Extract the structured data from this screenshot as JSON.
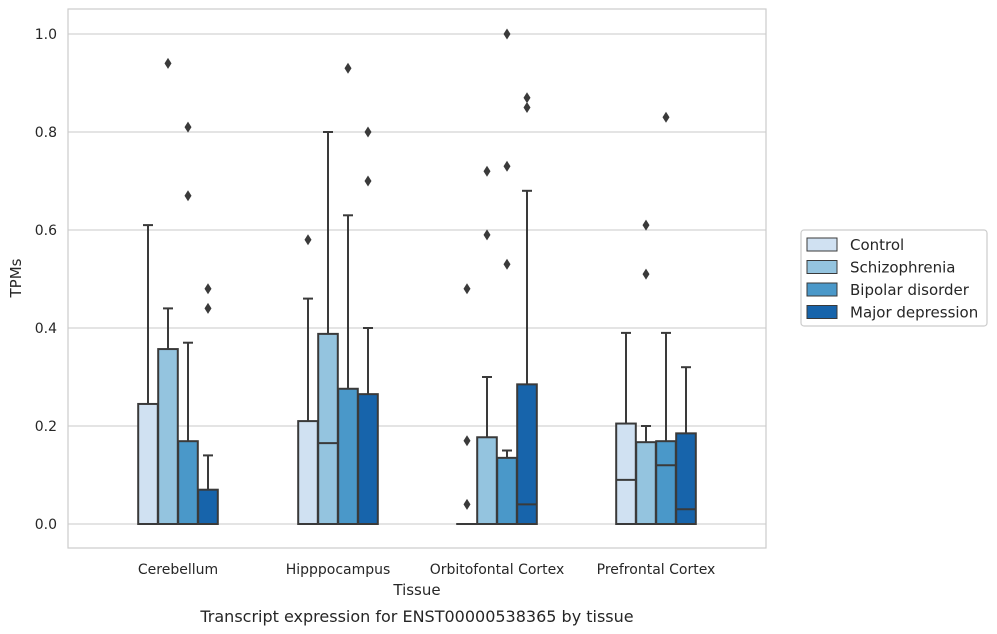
{
  "chart_data": {
    "type": "box",
    "title": "",
    "caption": "Transcript expression for ENST00000538365 by tissue",
    "xlabel": "Tissue",
    "ylabel": "TPMs",
    "ylim": [
      -0.05,
      1.05
    ],
    "yticks": [
      "0.0",
      "0.2",
      "0.4",
      "0.6",
      "0.8",
      "1.0"
    ],
    "grid": true,
    "legend_position": "right",
    "categories": [
      "Cerebellum",
      "Hipppocampus",
      "Orbitofontal Cortex",
      "Prefrontal Cortex"
    ],
    "series": [
      {
        "name": "Control",
        "color": "#d0e1f2",
        "boxes": [
          {
            "min": 0.0,
            "q1": 0.0,
            "median": 0.0,
            "q3": 0.245,
            "max": 0.61,
            "outliers": []
          },
          {
            "min": 0.0,
            "q1": 0.0,
            "median": 0.0,
            "q3": 0.21,
            "max": 0.46,
            "outliers": [
              0.58
            ]
          },
          {
            "min": 0.0,
            "q1": 0.0,
            "median": 0.0,
            "q3": 0.0,
            "max": 0.0,
            "outliers": [
              0.04,
              0.17,
              0.48
            ]
          },
          {
            "min": 0.0,
            "q1": 0.0,
            "median": 0.09,
            "q3": 0.205,
            "max": 0.39,
            "outliers": []
          }
        ]
      },
      {
        "name": "Schizophrenia",
        "color": "#94c4df",
        "boxes": [
          {
            "min": 0.0,
            "q1": 0.0,
            "median": 0.0,
            "q3": 0.357,
            "max": 0.44,
            "outliers": [
              0.94
            ]
          },
          {
            "min": 0.0,
            "q1": 0.0,
            "median": 0.165,
            "q3": 0.388,
            "max": 0.8,
            "outliers": []
          },
          {
            "min": 0.0,
            "q1": 0.0,
            "median": 0.0,
            "q3": 0.177,
            "max": 0.3,
            "outliers": [
              0.59,
              0.72
            ]
          },
          {
            "min": 0.0,
            "q1": 0.0,
            "median": 0.0,
            "q3": 0.167,
            "max": 0.2,
            "outliers": [
              0.51,
              0.61
            ]
          }
        ]
      },
      {
        "name": "Bipolar disorder",
        "color": "#4a98c9",
        "boxes": [
          {
            "min": 0.0,
            "q1": 0.0,
            "median": 0.0,
            "q3": 0.169,
            "max": 0.37,
            "outliers": [
              0.67,
              0.81
            ]
          },
          {
            "min": 0.0,
            "q1": 0.0,
            "median": 0.0,
            "q3": 0.276,
            "max": 0.63,
            "outliers": [
              0.93
            ]
          },
          {
            "min": 0.0,
            "q1": 0.0,
            "median": 0.0,
            "q3": 0.135,
            "max": 0.15,
            "outliers": [
              0.53,
              0.73,
              1.0
            ]
          },
          {
            "min": 0.0,
            "q1": 0.0,
            "median": 0.12,
            "q3": 0.169,
            "max": 0.39,
            "outliers": [
              0.83
            ]
          }
        ]
      },
      {
        "name": "Major depression",
        "color": "#1764ab",
        "boxes": [
          {
            "min": 0.0,
            "q1": 0.0,
            "median": 0.0,
            "q3": 0.07,
            "max": 0.14,
            "outliers": [
              0.44,
              0.48
            ]
          },
          {
            "min": 0.0,
            "q1": 0.0,
            "median": 0.0,
            "q3": 0.265,
            "max": 0.4,
            "outliers": [
              0.7,
              0.8
            ]
          },
          {
            "min": 0.0,
            "q1": 0.0,
            "median": 0.04,
            "q3": 0.285,
            "max": 0.68,
            "outliers": [
              0.85,
              0.87
            ]
          },
          {
            "min": 0.0,
            "q1": 0.0,
            "median": 0.03,
            "q3": 0.185,
            "max": 0.32,
            "outliers": []
          }
        ]
      }
    ]
  }
}
